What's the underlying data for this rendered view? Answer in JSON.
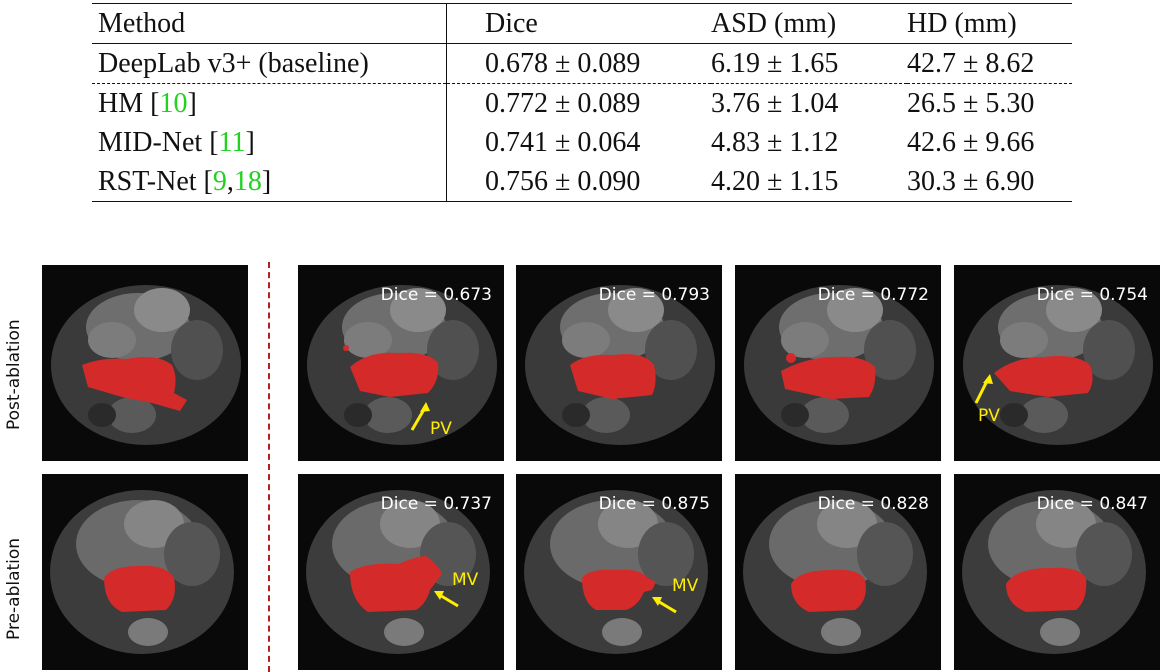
{
  "table": {
    "headers": [
      "Method",
      "Dice",
      "ASD (mm)",
      "HD (mm)"
    ],
    "rows": [
      {
        "method": "DeepLab v3+ (baseline)",
        "cites": [],
        "dice": "0.678 ± 0.089",
        "asd": "6.19 ± 1.65",
        "hd": "42.7 ± 8.62"
      },
      {
        "method": "HM",
        "cites": [
          "10"
        ],
        "dice": "0.772 ± 0.089",
        "asd": "3.76 ± 1.04",
        "hd": "26.5 ± 5.30"
      },
      {
        "method": "MID-Net",
        "cites": [
          "11"
        ],
        "dice": "0.741 ± 0.064",
        "asd": "4.83 ± 1.12",
        "hd": "42.6 ± 9.66"
      },
      {
        "method": "RST-Net",
        "cites": [
          "9",
          "18"
        ],
        "dice": "0.756 ± 0.090",
        "asd": "4.20 ± 1.15",
        "hd": "30.3 ± 6.90"
      }
    ]
  },
  "figure": {
    "row_labels": {
      "post": "Post-ablation",
      "pre": "Pre-ablation"
    },
    "post_dice": [
      "Dice = 0.673",
      "Dice = 0.793",
      "Dice = 0.772",
      "Dice = 0.754"
    ],
    "pre_dice": [
      "Dice = 0.737",
      "Dice = 0.875",
      "Dice = 0.828",
      "Dice = 0.847"
    ],
    "annotations": {
      "pv": "PV",
      "mv": "MV"
    },
    "colors": {
      "mask": "#d42a2a",
      "arrow": "#ffee00",
      "divider": "#b32020",
      "citation": "#21d21f"
    }
  }
}
